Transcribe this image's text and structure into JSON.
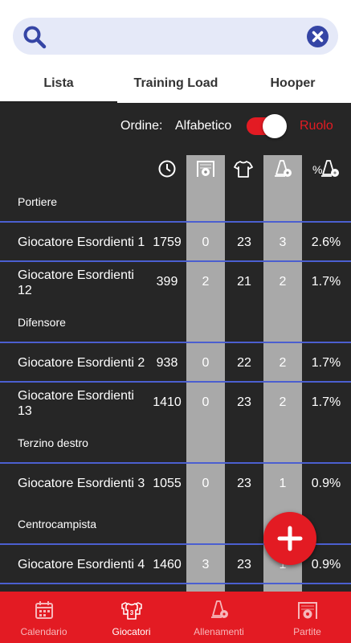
{
  "search": {
    "placeholder": "",
    "value": ""
  },
  "tabs": [
    {
      "label": "Lista",
      "active": true
    },
    {
      "label": "Training Load",
      "active": false
    },
    {
      "label": "Hooper",
      "active": false
    }
  ],
  "order": {
    "label": "Ordine:",
    "option_left": "Alfabetico",
    "option_right": "Ruolo",
    "toggle_on": true
  },
  "columns": [
    "clock-icon",
    "goal-ball-icon",
    "jersey-icon",
    "cone-ball-icon",
    "percent-cone-ball-icon"
  ],
  "sections": [
    {
      "label": "Portiere",
      "players": [
        {
          "name": "Giocatore Esordienti 1",
          "minutes": "1759",
          "matches": "0",
          "number": "23",
          "trainings": "3",
          "percent": "2.6%"
        },
        {
          "name": "Giocatore Esordienti 12",
          "minutes": "399",
          "matches": "2",
          "number": "21",
          "trainings": "2",
          "percent": "1.7%"
        }
      ]
    },
    {
      "label": "Difensore",
      "players": [
        {
          "name": "Giocatore Esordienti 2",
          "minutes": "938",
          "matches": "0",
          "number": "22",
          "trainings": "2",
          "percent": "1.7%"
        },
        {
          "name": "Giocatore Esordienti 13",
          "minutes": "1410",
          "matches": "0",
          "number": "23",
          "trainings": "2",
          "percent": "1.7%"
        }
      ]
    },
    {
      "label": "Terzino destro",
      "players": [
        {
          "name": "Giocatore Esordienti 3",
          "minutes": "1055",
          "matches": "0",
          "number": "23",
          "trainings": "1",
          "percent": "0.9%"
        }
      ]
    },
    {
      "label": "Centrocampista",
      "players": [
        {
          "name": "Giocatore Esordienti 4",
          "minutes": "1460",
          "matches": "3",
          "number": "23",
          "trainings": "1",
          "percent": "0.9%"
        }
      ]
    }
  ],
  "bottom_nav": [
    {
      "label": "Calendario",
      "icon": "calendar-icon",
      "active": false
    },
    {
      "label": "Giocatori",
      "icon": "players-jersey-icon",
      "active": true
    },
    {
      "label": "Allenamenti",
      "icon": "training-cone-icon",
      "active": false
    },
    {
      "label": "Partite",
      "icon": "match-goal-icon",
      "active": false
    }
  ],
  "colors": {
    "accent": "#e31b23",
    "divider": "#4b5fd0",
    "background": "#262626",
    "search_bg": "#e5e9f8",
    "search_icon": "#3545a5"
  }
}
